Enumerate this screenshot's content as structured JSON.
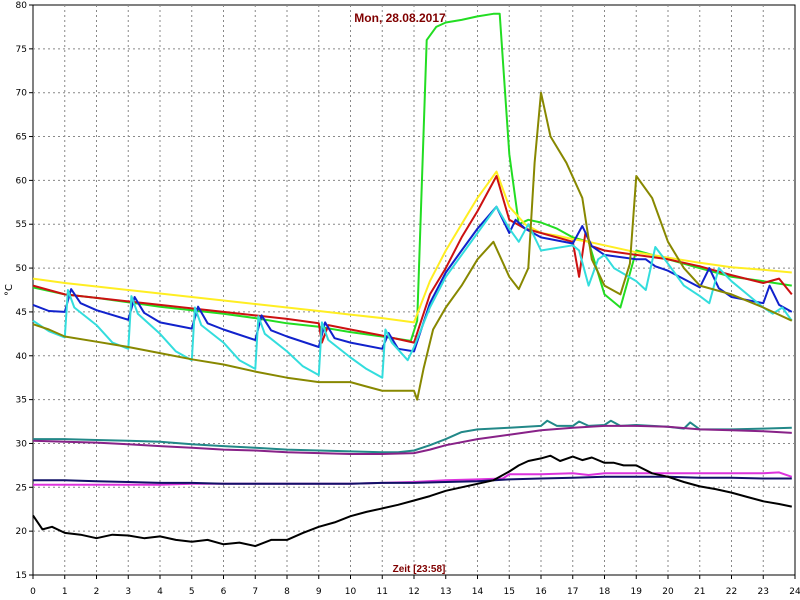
{
  "chart_data": {
    "type": "line",
    "title": "Mon, 28.08.2017",
    "xlabel": "Zeit [23:58]",
    "ylabel": "°C",
    "xlim": [
      0,
      24
    ],
    "ylim": [
      15,
      80
    ],
    "xticks": [
      0,
      1,
      2,
      3,
      4,
      5,
      6,
      7,
      8,
      9,
      10,
      11,
      12,
      13,
      14,
      15,
      16,
      17,
      18,
      19,
      20,
      21,
      22,
      23,
      24
    ],
    "yticks": [
      15,
      20,
      25,
      30,
      35,
      40,
      45,
      50,
      55,
      60,
      65,
      70,
      75,
      80
    ],
    "grid": true,
    "series": [
      {
        "color": "#22dd22",
        "x": [
          0,
          1,
          2,
          3,
          4,
          5,
          6,
          7,
          8,
          9,
          10,
          11,
          11.9,
          12.1,
          12.4,
          12.7,
          13,
          13.5,
          14,
          14.5,
          14.7,
          15,
          15.3,
          15.6,
          16,
          16.5,
          17,
          17.5,
          18,
          18.5,
          19,
          20,
          21,
          22,
          23,
          23.9
        ],
        "y": [
          47.8,
          47,
          46.6,
          46.1,
          45.6,
          45.2,
          44.8,
          44.3,
          43.7,
          43.3,
          42.7,
          42.2,
          41.7,
          44,
          76,
          77.5,
          78,
          78.3,
          78.7,
          79,
          79,
          63,
          55,
          55.5,
          55.2,
          54.5,
          53.5,
          53,
          47,
          45.5,
          52,
          51,
          50,
          49,
          48.5,
          48
        ]
      },
      {
        "color": "#ffee22",
        "x": [
          0,
          1,
          2,
          3,
          4,
          5,
          6,
          7,
          8,
          9,
          10,
          11,
          12,
          12.5,
          13,
          13.5,
          14,
          14.6,
          15,
          15.5,
          16,
          16.5,
          17,
          17.5,
          18,
          19,
          20,
          21,
          22,
          23,
          23.9
        ],
        "y": [
          48.8,
          48.3,
          47.9,
          47.5,
          47.1,
          46.7,
          46.3,
          45.9,
          45.5,
          45.1,
          44.7,
          44.3,
          43.8,
          48.5,
          52,
          55,
          58,
          61,
          57,
          55,
          54,
          53.7,
          53.3,
          53,
          52.6,
          51.8,
          51.2,
          50.6,
          50.1,
          49.8,
          49.5
        ]
      },
      {
        "color": "#cc1111",
        "x": [
          0,
          1,
          2,
          3,
          4,
          5,
          6,
          7,
          8,
          9,
          9.1,
          9.3,
          10,
          11,
          12,
          12.5,
          13,
          13.5,
          14,
          14.6,
          15,
          15.5,
          16,
          16.5,
          17,
          17.2,
          17.4,
          17.6,
          18,
          19,
          20,
          21,
          22,
          23,
          23.5,
          23.9
        ],
        "y": [
          48,
          47,
          46.6,
          46.2,
          45.8,
          45.4,
          45,
          44.6,
          44.2,
          43.7,
          41.5,
          43.5,
          43,
          42.3,
          41.5,
          47,
          50,
          53.5,
          56.5,
          60.5,
          55.5,
          54.5,
          54,
          53.5,
          53,
          49,
          54,
          52.5,
          52,
          51.5,
          51,
          50.2,
          49.2,
          48.3,
          48.8,
          47
        ]
      },
      {
        "color": "#1122cc",
        "x": [
          0,
          0.5,
          1,
          1.2,
          1.5,
          2,
          3,
          3.2,
          3.5,
          4,
          5,
          5.2,
          5.5,
          6,
          7,
          7.2,
          7.5,
          8,
          9,
          9.2,
          9.5,
          10,
          11,
          11.2,
          11.5,
          12,
          12.5,
          13,
          13.5,
          14,
          14.6,
          15,
          15.2,
          15.5,
          16,
          17,
          17.3,
          17.6,
          18,
          19,
          19.3,
          19.6,
          20,
          21,
          21.3,
          21.6,
          22,
          23,
          23.2,
          23.5,
          23.9
        ],
        "y": [
          45.8,
          45.1,
          45,
          47.6,
          46,
          45.2,
          44.1,
          46.7,
          44.9,
          43.8,
          43.1,
          45.6,
          43.7,
          43,
          41.8,
          44.6,
          42.9,
          42.2,
          41,
          43.8,
          42,
          41.5,
          40.8,
          42.6,
          40.8,
          40.5,
          46,
          49.5,
          52,
          54.5,
          57,
          54,
          55.5,
          54.5,
          53.5,
          52.8,
          54.8,
          52.5,
          51.5,
          51,
          51,
          50.2,
          49.7,
          47.8,
          50,
          47.7,
          46.7,
          46,
          48,
          45.8,
          45
        ]
      },
      {
        "color": "#33dddd",
        "x": [
          0,
          0.5,
          1,
          1.1,
          1.3,
          2,
          2.5,
          3,
          3.1,
          3.3,
          4,
          4.5,
          5,
          5.1,
          5.3,
          6,
          6.5,
          7,
          7.1,
          7.3,
          8,
          8.5,
          9,
          9.1,
          9.3,
          10,
          10.5,
          11,
          11.1,
          11.3,
          11.8,
          12,
          12.5,
          13,
          13.5,
          14,
          14.6,
          15,
          15.3,
          15.6,
          16,
          17,
          17.2,
          17.5,
          17.8,
          18,
          18.3,
          19,
          19.3,
          19.6,
          20,
          20.5,
          21,
          21.3,
          21.6,
          22,
          22.5,
          23,
          23.3,
          23.6,
          23.9
        ],
        "y": [
          44,
          42.8,
          42.1,
          47.5,
          45.5,
          43.5,
          41.5,
          40.8,
          46.8,
          44.8,
          42.5,
          40.5,
          39.5,
          45.5,
          43.5,
          41.5,
          39.5,
          38.5,
          44.5,
          42.5,
          40.5,
          38.8,
          37.8,
          43.8,
          41.8,
          39.8,
          38.5,
          37.5,
          43,
          41.5,
          39.5,
          41,
          45.5,
          49,
          51.5,
          54,
          57,
          54.5,
          53,
          55,
          52,
          52.6,
          52,
          48,
          51,
          51.5,
          50,
          48.5,
          47.5,
          52.4,
          50.5,
          48,
          46.8,
          46,
          50,
          48.5,
          47,
          45.5,
          44.8,
          45.5,
          44
        ]
      },
      {
        "color": "#888800",
        "x": [
          0,
          0.5,
          1,
          2,
          3,
          4,
          5,
          6,
          7,
          8,
          9,
          10,
          10.5,
          11,
          11.5,
          12,
          12.1,
          12.3,
          12.6,
          13,
          13.5,
          14,
          14.5,
          15,
          15.3,
          15.6,
          15.8,
          16,
          16.3,
          16.8,
          17.3,
          17.6,
          18,
          18.5,
          18.8,
          19,
          19.5,
          20,
          20.5,
          21,
          21.5,
          22,
          23,
          23.9
        ],
        "y": [
          43.6,
          43,
          42.2,
          41.6,
          41,
          40.3,
          39.6,
          39,
          38.2,
          37.5,
          37,
          37,
          36.5,
          36,
          36,
          36,
          35,
          38.5,
          43,
          45.5,
          48,
          51,
          53,
          49,
          47.6,
          50,
          62,
          70,
          65,
          62,
          58,
          51,
          48,
          47,
          50.5,
          60.5,
          58,
          53,
          50,
          48,
          47.5,
          47,
          45.5,
          44
        ]
      },
      {
        "color": "#228888",
        "x": [
          0,
          1,
          2,
          3,
          4,
          5,
          6,
          7,
          8,
          9,
          10,
          11,
          11.5,
          12,
          12.5,
          13,
          13.5,
          14,
          15,
          16,
          16.2,
          16.5,
          17,
          17.2,
          17.5,
          18,
          18.2,
          18.5,
          19,
          19.5,
          20,
          20.5,
          20.7,
          21,
          22,
          23,
          23.9
        ],
        "y": [
          30.5,
          30.5,
          30.4,
          30.3,
          30.2,
          29.9,
          29.7,
          29.5,
          29.3,
          29.2,
          29.1,
          29,
          29,
          29.2,
          29.8,
          30.5,
          31.3,
          31.6,
          31.8,
          32,
          32.6,
          32,
          32,
          32.5,
          32,
          32.1,
          32.6,
          32,
          32.1,
          32,
          31.9,
          31.7,
          32.4,
          31.6,
          31.6,
          31.7,
          31.8
        ]
      },
      {
        "color": "#882288",
        "x": [
          0,
          1,
          2,
          3,
          4,
          5,
          6,
          7,
          8,
          9,
          10,
          11,
          12,
          12.5,
          13,
          14,
          15,
          16,
          17,
          18,
          19,
          20,
          21,
          22,
          23,
          23.9
        ],
        "y": [
          30.3,
          30.2,
          30.1,
          29.9,
          29.7,
          29.5,
          29.3,
          29.2,
          29,
          28.9,
          28.8,
          28.8,
          28.9,
          29.3,
          29.8,
          30.5,
          31,
          31.5,
          31.8,
          32,
          32,
          31.9,
          31.6,
          31.5,
          31.4,
          31.2
        ]
      },
      {
        "color": "#dd33dd",
        "x": [
          0,
          1,
          2,
          3,
          4,
          5,
          6,
          7,
          8,
          9,
          10,
          11,
          12,
          13,
          14,
          14.8,
          15,
          16,
          17,
          17.5,
          18,
          19,
          20,
          21,
          22,
          23,
          23.5,
          23.9
        ],
        "y": [
          25.3,
          25.3,
          25.3,
          25.3,
          25.3,
          25.4,
          25.4,
          25.4,
          25.4,
          25.4,
          25.4,
          25.5,
          25.6,
          25.8,
          25.9,
          26,
          26.5,
          26.5,
          26.6,
          26.4,
          26.6,
          26.6,
          26.6,
          26.6,
          26.6,
          26.6,
          26.7,
          26.2
        ]
      },
      {
        "color": "#111166",
        "x": [
          0,
          1,
          2,
          3,
          4,
          5,
          6,
          7,
          8,
          9,
          10,
          11,
          12,
          13,
          14,
          15,
          16,
          17,
          18,
          19,
          20,
          21,
          22,
          23,
          23.9
        ],
        "y": [
          25.8,
          25.8,
          25.7,
          25.6,
          25.5,
          25.5,
          25.4,
          25.4,
          25.4,
          25.4,
          25.4,
          25.5,
          25.5,
          25.6,
          25.7,
          25.9,
          26,
          26.1,
          26.2,
          26.2,
          26.2,
          26.1,
          26.1,
          26,
          26
        ]
      },
      {
        "color": "#000000",
        "x": [
          0,
          0.3,
          0.6,
          1,
          1.5,
          2,
          2.5,
          3,
          3.5,
          4,
          4.5,
          5,
          5.5,
          6,
          6.5,
          7,
          7.5,
          8,
          8.5,
          9,
          9.5,
          10,
          10.5,
          11,
          11.5,
          12,
          12.5,
          13,
          13.5,
          14,
          14.5,
          15,
          15.3,
          15.6,
          16,
          16.3,
          16.6,
          17,
          17.3,
          17.6,
          18,
          18.3,
          18.6,
          19,
          19.5,
          20,
          20.5,
          21,
          21.5,
          22,
          22.5,
          23,
          23.5,
          23.9
        ],
        "y": [
          21.8,
          20.2,
          20.5,
          19.8,
          19.6,
          19.2,
          19.6,
          19.5,
          19.2,
          19.4,
          19,
          18.8,
          19,
          18.5,
          18.7,
          18.3,
          19,
          19,
          19.8,
          20.5,
          21,
          21.7,
          22.2,
          22.6,
          23,
          23.5,
          24,
          24.6,
          25,
          25.4,
          25.8,
          26.8,
          27.5,
          28,
          28.3,
          28.6,
          28,
          28.5,
          28.1,
          28.4,
          27.8,
          27.8,
          27.5,
          27.5,
          26.6,
          26.2,
          25.6,
          25.1,
          24.8,
          24.4,
          23.9,
          23.4,
          23.1,
          22.8
        ]
      }
    ]
  }
}
